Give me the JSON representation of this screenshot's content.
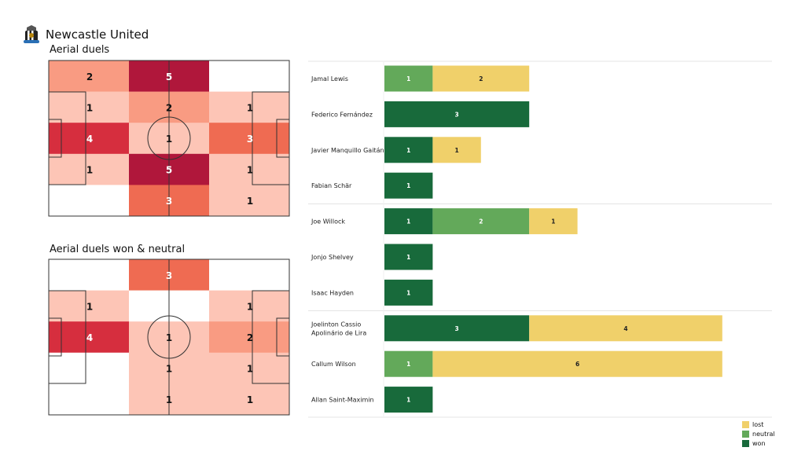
{
  "header": {
    "team": "Newcastle United",
    "crest_icon": "newcastle-crest-icon"
  },
  "pitches": [
    {
      "title": "Aerial duels",
      "grid": [
        [
          2,
          5,
          null
        ],
        [
          1,
          2,
          1
        ],
        [
          4,
          1,
          3
        ],
        [
          1,
          5,
          1
        ],
        [
          null,
          3,
          1
        ]
      ],
      "labels": [
        [
          "2",
          "5",
          ""
        ],
        [
          "1",
          "2",
          "1"
        ],
        [
          "4",
          "1",
          "3"
        ],
        [
          "1",
          "5",
          "1"
        ],
        [
          "",
          "3",
          "1"
        ]
      ]
    },
    {
      "title": "Aerial duels won & neutral",
      "grid": [
        [
          null,
          3,
          null
        ],
        [
          1,
          null,
          1
        ],
        [
          4,
          1,
          2
        ],
        [
          null,
          1,
          1
        ],
        [
          null,
          1,
          1
        ]
      ],
      "labels": [
        [
          "",
          "3",
          ""
        ],
        [
          "1",
          "",
          "1"
        ],
        [
          "4",
          "1",
          "2"
        ],
        [
          "",
          "1",
          "1"
        ],
        [
          "",
          "1",
          "1"
        ]
      ]
    }
  ],
  "chart_data": {
    "type": "bar",
    "orientation": "horizontal",
    "stacked": true,
    "categories": [
      "Jamal Lewis",
      "Federico Fernández",
      "Javier Manquillo Gaitán",
      "Fabian Schär",
      "Joe Willock",
      "Jonjo Shelvey",
      "Isaac Hayden",
      "Joelinton Cassio Apolinário de Lira",
      "Callum Wilson",
      "Allan Saint-Maximin"
    ],
    "category_lines": [
      [
        "Jamal Lewis"
      ],
      [
        "Federico Fernández"
      ],
      [
        "Javier Manquillo Gaitán"
      ],
      [
        "Fabian Schär"
      ],
      [
        "Joe Willock"
      ],
      [
        "Jonjo Shelvey"
      ],
      [
        "Isaac Hayden"
      ],
      [
        "Joelinton Cassio",
        "Apolinário de Lira"
      ],
      [
        "Callum Wilson"
      ],
      [
        "Allan Saint-Maximin"
      ]
    ],
    "group_breaks_after": [
      3,
      6
    ],
    "series": [
      {
        "name": "won",
        "color": "#186a3b",
        "values": [
          0,
          3,
          1,
          1,
          1,
          1,
          1,
          3,
          0,
          1
        ]
      },
      {
        "name": "neutral",
        "color": "#63a95a",
        "values": [
          1,
          0,
          0,
          0,
          2,
          0,
          0,
          0,
          1,
          0
        ]
      },
      {
        "name": "lost",
        "color": "#f0d06a",
        "values": [
          2,
          0,
          1,
          0,
          1,
          0,
          0,
          4,
          6,
          0
        ]
      }
    ],
    "legend": {
      "position": "bottom-right",
      "order": [
        "lost",
        "neutral",
        "won"
      ]
    }
  }
}
